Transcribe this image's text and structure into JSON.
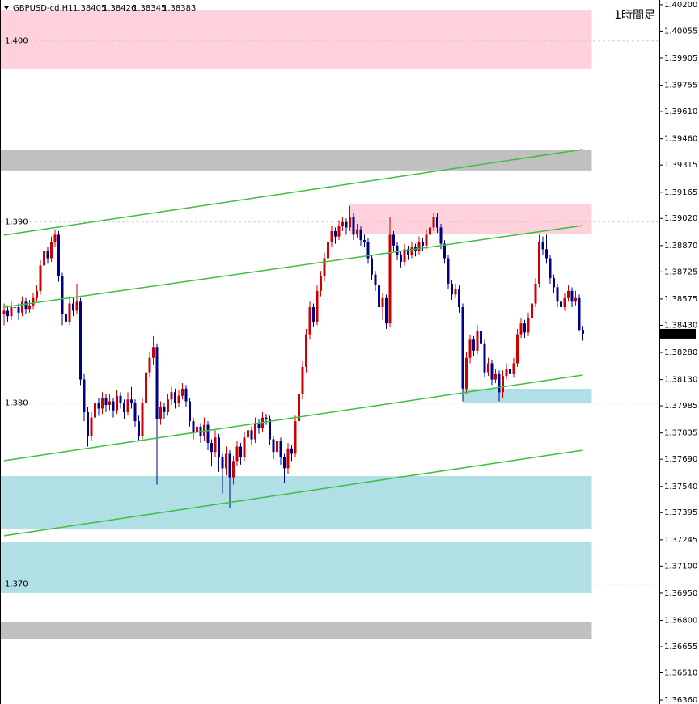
{
  "chart_data": {
    "type": "candlestick",
    "symbol": "GBPUSD-cd,H1",
    "timeframe_label": "1時間足",
    "up_color": "#cc0000",
    "down_color": "#00008b",
    "ylim": [
      1.36347,
      1.40222
    ],
    "yticks": [
      {
        "value": 1.402,
        "label": "1.40200"
      },
      {
        "value": 1.40055,
        "label": "1.40055"
      },
      {
        "value": 1.39905,
        "label": "1.39905"
      },
      {
        "value": 1.39755,
        "label": "1.39755"
      },
      {
        "value": 1.3961,
        "label": "1.39610"
      },
      {
        "value": 1.3946,
        "label": "1.39460"
      },
      1.39315,
      1.39165,
      {
        "value": 1.3902,
        "label": "1.39020"
      },
      {
        "value": 1.3887,
        "label": "1.38870"
      },
      1.38725,
      1.38575,
      {
        "value": 1.3843,
        "label": "1.38430"
      },
      {
        "value": 1.3828,
        "label": "1.38280"
      },
      {
        "value": 1.3813,
        "label": "1.38130"
      },
      1.37985,
      1.37835,
      {
        "value": 1.3769,
        "label": "1.37690"
      },
      {
        "value": 1.3754,
        "label": "1.37540"
      },
      1.37395,
      1.37245,
      {
        "value": 1.371,
        "label": "1.37100"
      },
      {
        "value": 1.3695,
        "label": "1.36950"
      },
      {
        "value": 1.368,
        "label": "1.36800"
      },
      1.36655,
      {
        "value": 1.3651,
        "label": "1.36510"
      },
      {
        "value": 1.3636,
        "label": "1.36360"
      }
    ],
    "levels": [
      {
        "value": 1.4,
        "label": "1.400"
      },
      {
        "value": 1.39,
        "label": "1.390"
      },
      {
        "value": 1.38,
        "label": "1.380"
      },
      {
        "value": 1.37,
        "label": "1.370"
      }
    ],
    "zones": [
      {
        "color": "#ffd1dc",
        "top": 1.40173,
        "bottom": 1.39847
      },
      {
        "color": "#c0c0c0",
        "top": 1.39396,
        "bottom": 1.39285
      },
      {
        "color": "#ffd1dc",
        "top": 1.39097,
        "bottom": 1.38932,
        "start": 95
      },
      {
        "color": "#b0e0e6",
        "top": 1.38079,
        "bottom": 1.37999,
        "start": 126
      },
      {
        "color": "#b0e0e6",
        "top": 1.37597,
        "bottom": 1.37302
      },
      {
        "color": "#b0e0e6",
        "top": 1.37235,
        "bottom": 1.3695
      },
      {
        "color": "#c0c0c0",
        "top": 1.36793,
        "bottom": 1.36695
      }
    ],
    "trend_lines": {
      "color": "#3cbf3c",
      "lines": [
        [
          1.38928,
          1.39401
        ],
        [
          1.3853,
          1.38981
        ],
        [
          1.37682,
          1.38155
        ],
        [
          1.37267,
          1.3774
        ]
      ]
    },
    "candles": [
      [
        1.3849,
        1.3855,
        1.3843,
        1.3851
      ],
      [
        1.3851,
        1.3854,
        1.3845,
        1.3848
      ],
      [
        1.3848,
        1.3856,
        1.3846,
        1.3853
      ],
      [
        1.3853,
        1.3857,
        1.3849,
        1.3853
      ],
      [
        1.3853,
        1.3855,
        1.3846,
        1.385
      ],
      [
        1.385,
        1.3859,
        1.3848,
        1.3856
      ],
      [
        1.3856,
        1.3858,
        1.3849,
        1.3852
      ],
      [
        1.3852,
        1.3857,
        1.385,
        1.3854
      ],
      [
        1.3854,
        1.3861,
        1.3852,
        1.3858
      ],
      [
        1.3858,
        1.3865,
        1.3856,
        1.3862
      ],
      [
        1.3862,
        1.3879,
        1.386,
        1.3876
      ],
      [
        1.3876,
        1.3887,
        1.3873,
        1.3884
      ],
      [
        1.3884,
        1.3886,
        1.3877,
        1.388
      ],
      [
        1.388,
        1.3892,
        1.3878,
        1.3889
      ],
      [
        1.3889,
        1.3896,
        1.3886,
        1.3893
      ],
      [
        1.3893,
        1.3895,
        1.3867,
        1.387
      ],
      [
        1.387,
        1.3872,
        1.3843,
        1.3849
      ],
      [
        1.3849,
        1.3852,
        1.384,
        1.3845
      ],
      [
        1.3845,
        1.3859,
        1.3843,
        1.3855
      ],
      [
        1.3855,
        1.3858,
        1.3848,
        1.3851
      ],
      [
        1.3851,
        1.3866,
        1.3849,
        1.3856
      ],
      [
        1.3856,
        1.3858,
        1.381,
        1.3813
      ],
      [
        1.3813,
        1.3816,
        1.379,
        1.3795
      ],
      [
        1.3795,
        1.3798,
        1.3776,
        1.3782
      ],
      [
        1.3782,
        1.3795,
        1.3779,
        1.3792
      ],
      [
        1.3792,
        1.3804,
        1.3789,
        1.38
      ],
      [
        1.38,
        1.3803,
        1.3793,
        1.3797
      ],
      [
        1.3797,
        1.3806,
        1.3794,
        1.3803
      ],
      [
        1.3803,
        1.3805,
        1.3795,
        1.3799
      ],
      [
        1.3799,
        1.3805,
        1.3796,
        1.3801
      ],
      [
        1.3801,
        1.3803,
        1.3792,
        1.3796
      ],
      [
        1.3796,
        1.3807,
        1.3794,
        1.3804
      ],
      [
        1.3804,
        1.3806,
        1.3797,
        1.38
      ],
      [
        1.38,
        1.3802,
        1.3791,
        1.3795
      ],
      [
        1.3795,
        1.3806,
        1.3793,
        1.3802
      ],
      [
        1.3802,
        1.3809,
        1.3797,
        1.38
      ],
      [
        1.38,
        1.3802,
        1.3787,
        1.379
      ],
      [
        1.379,
        1.3793,
        1.3779,
        1.3782
      ],
      [
        1.3782,
        1.3803,
        1.378,
        1.38
      ],
      [
        1.38,
        1.382,
        1.3797,
        1.3817
      ],
      [
        1.3817,
        1.3828,
        1.3814,
        1.3825
      ],
      [
        1.3825,
        1.3837,
        1.3821,
        1.3831
      ],
      [
        1.3831,
        1.3833,
        1.3755,
        1.3791
      ],
      [
        1.3791,
        1.3801,
        1.3788,
        1.3798
      ],
      [
        1.3798,
        1.38,
        1.3791,
        1.3795
      ],
      [
        1.3795,
        1.3805,
        1.3793,
        1.3802
      ],
      [
        1.3802,
        1.3809,
        1.3799,
        1.3806
      ],
      [
        1.3806,
        1.3808,
        1.3797,
        1.38
      ],
      [
        1.38,
        1.3807,
        1.3798,
        1.3804
      ],
      [
        1.3804,
        1.3811,
        1.3802,
        1.3808
      ],
      [
        1.3808,
        1.381,
        1.3798,
        1.3801
      ],
      [
        1.3801,
        1.3803,
        1.3787,
        1.379
      ],
      [
        1.379,
        1.3792,
        1.378,
        1.3784
      ],
      [
        1.3784,
        1.379,
        1.3781,
        1.3787
      ],
      [
        1.3787,
        1.3789,
        1.3778,
        1.3782
      ],
      [
        1.3782,
        1.3792,
        1.3779,
        1.3788
      ],
      [
        1.3788,
        1.379,
        1.3774,
        1.3778
      ],
      [
        1.3778,
        1.378,
        1.3765,
        1.3773
      ],
      [
        1.3773,
        1.3785,
        1.377,
        1.3781
      ],
      [
        1.3781,
        1.3783,
        1.3762,
        1.377
      ],
      [
        1.377,
        1.3772,
        1.375,
        1.3764
      ],
      [
        1.3764,
        1.3776,
        1.376,
        1.3772
      ],
      [
        1.3772,
        1.3774,
        1.3742,
        1.3759
      ],
      [
        1.3759,
        1.3771,
        1.3755,
        1.3768
      ],
      [
        1.3768,
        1.3779,
        1.3765,
        1.3776
      ],
      [
        1.3776,
        1.3778,
        1.3766,
        1.377
      ],
      [
        1.377,
        1.3784,
        1.3768,
        1.3781
      ],
      [
        1.3781,
        1.3788,
        1.3779,
        1.3785
      ],
      [
        1.3785,
        1.3787,
        1.3777,
        1.378
      ],
      [
        1.378,
        1.3792,
        1.3778,
        1.3789
      ],
      [
        1.3789,
        1.3791,
        1.3783,
        1.3786
      ],
      [
        1.3786,
        1.3795,
        1.3784,
        1.3792
      ],
      [
        1.3792,
        1.3794,
        1.3788,
        1.3791
      ],
      [
        1.3791,
        1.3793,
        1.3777,
        1.378
      ],
      [
        1.378,
        1.3782,
        1.3769,
        1.3773
      ],
      [
        1.3773,
        1.3782,
        1.377,
        1.3779
      ],
      [
        1.3779,
        1.3781,
        1.3766,
        1.377
      ],
      [
        1.377,
        1.3772,
        1.3756,
        1.3764
      ],
      [
        1.3764,
        1.3778,
        1.3761,
        1.3775
      ],
      [
        1.3775,
        1.3777,
        1.3768,
        1.3772
      ],
      [
        1.3772,
        1.3793,
        1.377,
        1.379
      ],
      [
        1.379,
        1.3808,
        1.3788,
        1.3805
      ],
      [
        1.3805,
        1.3823,
        1.3802,
        1.382
      ],
      [
        1.382,
        1.3841,
        1.3817,
        1.3838
      ],
      [
        1.3838,
        1.3856,
        1.3835,
        1.3853
      ],
      [
        1.3853,
        1.3855,
        1.3842,
        1.3845
      ],
      [
        1.3845,
        1.3865,
        1.3843,
        1.3862
      ],
      [
        1.3862,
        1.3873,
        1.3859,
        1.387
      ],
      [
        1.387,
        1.3883,
        1.3867,
        1.388
      ],
      [
        1.388,
        1.3892,
        1.3877,
        1.3889
      ],
      [
        1.3889,
        1.3898,
        1.3886,
        1.3895
      ],
      [
        1.3895,
        1.3897,
        1.3888,
        1.3892
      ],
      [
        1.3892,
        1.3901,
        1.389,
        1.3898
      ],
      [
        1.3898,
        1.3903,
        1.3895,
        1.39
      ],
      [
        1.39,
        1.3902,
        1.3893,
        1.3897
      ],
      [
        1.3897,
        1.3909,
        1.3895,
        1.3903
      ],
      [
        1.3903,
        1.3905,
        1.389,
        1.3893
      ],
      [
        1.3893,
        1.3899,
        1.3891,
        1.3896
      ],
      [
        1.3896,
        1.3898,
        1.3887,
        1.389
      ],
      [
        1.389,
        1.3893,
        1.3886,
        1.3889
      ],
      [
        1.3889,
        1.3891,
        1.3877,
        1.388
      ],
      [
        1.388,
        1.3882,
        1.3868,
        1.3871
      ],
      [
        1.3871,
        1.3873,
        1.3862,
        1.3865
      ],
      [
        1.3865,
        1.3867,
        1.385,
        1.3853
      ],
      [
        1.3853,
        1.3861,
        1.3846,
        1.3858
      ],
      [
        1.3858,
        1.386,
        1.3841,
        1.3844
      ],
      [
        1.3844,
        1.3903,
        1.3842,
        1.3893
      ],
      [
        1.3893,
        1.3895,
        1.3884,
        1.3887
      ],
      [
        1.3887,
        1.3889,
        1.3879,
        1.3882
      ],
      [
        1.3882,
        1.3884,
        1.3875,
        1.3878
      ],
      [
        1.3878,
        1.3888,
        1.3876,
        1.3885
      ],
      [
        1.3885,
        1.3887,
        1.3879,
        1.3882
      ],
      [
        1.3882,
        1.3889,
        1.388,
        1.3886
      ],
      [
        1.3886,
        1.3888,
        1.3881,
        1.3884
      ],
      [
        1.3884,
        1.3892,
        1.3882,
        1.3889
      ],
      [
        1.3889,
        1.3891,
        1.3884,
        1.3887
      ],
      [
        1.3887,
        1.3896,
        1.3885,
        1.3893
      ],
      [
        1.3893,
        1.39,
        1.3891,
        1.3897
      ],
      [
        1.3897,
        1.3905,
        1.3895,
        1.3903
      ],
      [
        1.3903,
        1.3905,
        1.3894,
        1.3897
      ],
      [
        1.3897,
        1.3899,
        1.3885,
        1.3888
      ],
      [
        1.3888,
        1.389,
        1.3877,
        1.388
      ],
      [
        1.388,
        1.3882,
        1.3863,
        1.3866
      ],
      [
        1.3866,
        1.3868,
        1.3857,
        1.386
      ],
      [
        1.386,
        1.3866,
        1.3858,
        1.3863
      ],
      [
        1.3863,
        1.3865,
        1.385,
        1.3853
      ],
      [
        1.3853,
        1.3855,
        1.3801,
        1.3808
      ],
      [
        1.3808,
        1.3828,
        1.3805,
        1.3825
      ],
      [
        1.3825,
        1.3838,
        1.3822,
        1.3835
      ],
      [
        1.3835,
        1.3837,
        1.3826,
        1.3829
      ],
      [
        1.3829,
        1.3843,
        1.3827,
        1.384
      ],
      [
        1.384,
        1.3842,
        1.383,
        1.3833
      ],
      [
        1.3833,
        1.3835,
        1.3814,
        1.3817
      ],
      [
        1.3817,
        1.3825,
        1.3815,
        1.3822
      ],
      [
        1.3822,
        1.3824,
        1.381,
        1.3813
      ],
      [
        1.3813,
        1.3819,
        1.3811,
        1.3816
      ],
      [
        1.3816,
        1.3818,
        1.3801,
        1.3806
      ],
      [
        1.3806,
        1.3818,
        1.3803,
        1.3815
      ],
      [
        1.3815,
        1.3822,
        1.3813,
        1.3819
      ],
      [
        1.3819,
        1.3821,
        1.3813,
        1.3816
      ],
      [
        1.3816,
        1.3825,
        1.3814,
        1.3822
      ],
      [
        1.3822,
        1.3841,
        1.382,
        1.3838
      ],
      [
        1.3838,
        1.3847,
        1.3836,
        1.3844
      ],
      [
        1.3844,
        1.3846,
        1.3836,
        1.3839
      ],
      [
        1.3839,
        1.385,
        1.3837,
        1.3847
      ],
      [
        1.3847,
        1.3858,
        1.3845,
        1.3855
      ],
      [
        1.3855,
        1.3869,
        1.3853,
        1.3866
      ],
      [
        1.3866,
        1.3893,
        1.3864,
        1.3889
      ],
      [
        1.3889,
        1.3892,
        1.3882,
        1.3885
      ],
      [
        1.3885,
        1.3893,
        1.3877,
        1.388
      ],
      [
        1.388,
        1.3882,
        1.3866,
        1.3869
      ],
      [
        1.3869,
        1.3871,
        1.3861,
        1.3864
      ],
      [
        1.3864,
        1.3866,
        1.3853,
        1.3856
      ],
      [
        1.3856,
        1.3858,
        1.385,
        1.3853
      ],
      [
        1.3853,
        1.3861,
        1.3851,
        1.3858
      ],
      [
        1.3858,
        1.3865,
        1.3856,
        1.3862
      ],
      [
        1.3862,
        1.3864,
        1.3853,
        1.3856
      ],
      [
        1.3856,
        1.3862,
        1.3854,
        1.3858
      ],
      [
        1.3858,
        1.386,
        1.38395,
        1.38405
      ],
      [
        1.38405,
        1.38426,
        1.38345,
        1.38383
      ]
    ]
  }
}
